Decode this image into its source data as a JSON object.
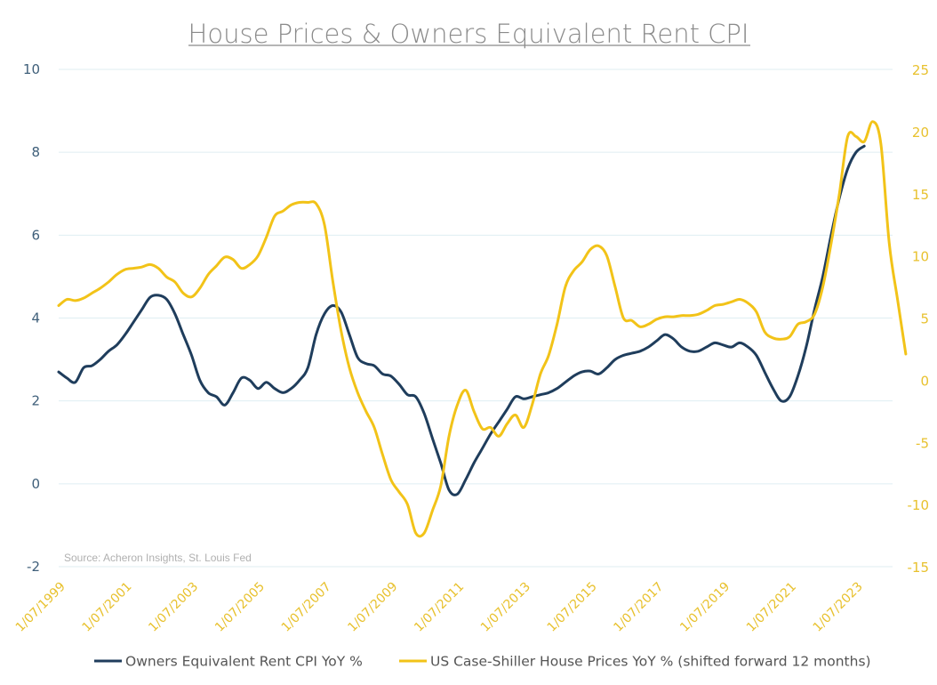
{
  "chart_data": {
    "type": "line",
    "title": "House Prices & Owners Equivalent Rent CPI",
    "source": "Source: Acheron Insights, St. Louis Fed",
    "grid": true,
    "x_tick_labels": [
      "1/07/1999",
      "1/07/2001",
      "1/07/2003",
      "1/07/2005",
      "1/07/2007",
      "1/07/2009",
      "1/07/2011",
      "1/07/2013",
      "1/07/2015",
      "1/07/2017",
      "1/07/2019",
      "1/07/2021",
      "1/07/2023"
    ],
    "x_range": [
      1999.5,
      2024.6
    ],
    "y_left": {
      "ticks": [
        10,
        8,
        6,
        4,
        2,
        0,
        -2
      ],
      "ylim": [
        -2,
        10
      ],
      "color": "#1f3d5c"
    },
    "y_right": {
      "ticks": [
        25,
        20,
        15,
        10,
        5,
        0,
        -5,
        -10,
        -15
      ],
      "ylim": [
        -15,
        25
      ],
      "color": "#f2c318"
    },
    "series": [
      {
        "name": "Owners Equivalent Rent CPI YoY %",
        "axis": "left",
        "color": "#1f3d5c",
        "points": [
          [
            1999.5,
            2.7
          ],
          [
            1999.75,
            2.55
          ],
          [
            2000.0,
            2.45
          ],
          [
            2000.25,
            2.8
          ],
          [
            2000.5,
            2.85
          ],
          [
            2000.75,
            3.0
          ],
          [
            2001.0,
            3.2
          ],
          [
            2001.25,
            3.35
          ],
          [
            2001.5,
            3.6
          ],
          [
            2001.75,
            3.9
          ],
          [
            2002.0,
            4.2
          ],
          [
            2002.25,
            4.5
          ],
          [
            2002.5,
            4.55
          ],
          [
            2002.75,
            4.45
          ],
          [
            2003.0,
            4.1
          ],
          [
            2003.25,
            3.6
          ],
          [
            2003.5,
            3.1
          ],
          [
            2003.75,
            2.5
          ],
          [
            2004.0,
            2.2
          ],
          [
            2004.25,
            2.1
          ],
          [
            2004.5,
            1.9
          ],
          [
            2004.75,
            2.2
          ],
          [
            2005.0,
            2.55
          ],
          [
            2005.25,
            2.5
          ],
          [
            2005.5,
            2.3
          ],
          [
            2005.75,
            2.45
          ],
          [
            2006.0,
            2.3
          ],
          [
            2006.25,
            2.2
          ],
          [
            2006.5,
            2.3
          ],
          [
            2006.75,
            2.5
          ],
          [
            2007.0,
            2.8
          ],
          [
            2007.25,
            3.6
          ],
          [
            2007.5,
            4.1
          ],
          [
            2007.75,
            4.3
          ],
          [
            2008.0,
            4.15
          ],
          [
            2008.25,
            3.6
          ],
          [
            2008.5,
            3.05
          ],
          [
            2008.75,
            2.9
          ],
          [
            2009.0,
            2.85
          ],
          [
            2009.25,
            2.65
          ],
          [
            2009.5,
            2.6
          ],
          [
            2009.75,
            2.4
          ],
          [
            2010.0,
            2.15
          ],
          [
            2010.25,
            2.1
          ],
          [
            2010.5,
            1.7
          ],
          [
            2010.75,
            1.1
          ],
          [
            2011.0,
            0.5
          ],
          [
            2011.25,
            -0.15
          ],
          [
            2011.5,
            -0.25
          ],
          [
            2011.75,
            0.1
          ],
          [
            2012.0,
            0.5
          ],
          [
            2012.25,
            0.85
          ],
          [
            2012.5,
            1.2
          ],
          [
            2012.75,
            1.5
          ],
          [
            2013.0,
            1.8
          ],
          [
            2013.25,
            2.1
          ],
          [
            2013.5,
            2.05
          ],
          [
            2013.75,
            2.1
          ],
          [
            2014.0,
            2.15
          ],
          [
            2014.25,
            2.2
          ],
          [
            2014.5,
            2.3
          ],
          [
            2014.75,
            2.45
          ],
          [
            2015.0,
            2.6
          ],
          [
            2015.25,
            2.7
          ],
          [
            2015.5,
            2.72
          ],
          [
            2015.75,
            2.65
          ],
          [
            2016.0,
            2.8
          ],
          [
            2016.25,
            3.0
          ],
          [
            2016.5,
            3.1
          ],
          [
            2016.75,
            3.15
          ],
          [
            2017.0,
            3.2
          ],
          [
            2017.25,
            3.3
          ],
          [
            2017.5,
            3.45
          ],
          [
            2017.75,
            3.6
          ],
          [
            2018.0,
            3.5
          ],
          [
            2018.25,
            3.3
          ],
          [
            2018.5,
            3.2
          ],
          [
            2018.75,
            3.2
          ],
          [
            2019.0,
            3.3
          ],
          [
            2019.25,
            3.4
          ],
          [
            2019.5,
            3.35
          ],
          [
            2019.75,
            3.3
          ],
          [
            2020.0,
            3.4
          ],
          [
            2020.25,
            3.3
          ],
          [
            2020.5,
            3.1
          ],
          [
            2020.75,
            2.7
          ],
          [
            2021.0,
            2.3
          ],
          [
            2021.25,
            2.0
          ],
          [
            2021.5,
            2.1
          ],
          [
            2021.75,
            2.6
          ],
          [
            2022.0,
            3.3
          ],
          [
            2022.25,
            4.2
          ],
          [
            2022.5,
            5.0
          ],
          [
            2022.75,
            6.0
          ],
          [
            2023.0,
            6.9
          ],
          [
            2023.25,
            7.6
          ],
          [
            2023.5,
            8.0
          ],
          [
            2023.75,
            8.15
          ]
        ]
      },
      {
        "name": "US Case-Shiller House Prices YoY % (shifted forward 12 months)",
        "axis": "right",
        "color": "#f2c318",
        "points": [
          [
            1999.5,
            6.0
          ],
          [
            1999.75,
            6.5
          ],
          [
            2000.0,
            6.4
          ],
          [
            2000.25,
            6.6
          ],
          [
            2000.5,
            7.0
          ],
          [
            2000.75,
            7.4
          ],
          [
            2001.0,
            7.9
          ],
          [
            2001.25,
            8.5
          ],
          [
            2001.5,
            8.9
          ],
          [
            2001.75,
            9.0
          ],
          [
            2002.0,
            9.1
          ],
          [
            2002.25,
            9.3
          ],
          [
            2002.5,
            9.0
          ],
          [
            2002.75,
            8.3
          ],
          [
            2003.0,
            7.9
          ],
          [
            2003.25,
            7.0
          ],
          [
            2003.5,
            6.7
          ],
          [
            2003.75,
            7.4
          ],
          [
            2004.0,
            8.5
          ],
          [
            2004.25,
            9.2
          ],
          [
            2004.5,
            9.9
          ],
          [
            2004.75,
            9.7
          ],
          [
            2005.0,
            9.0
          ],
          [
            2005.25,
            9.3
          ],
          [
            2005.5,
            10.0
          ],
          [
            2005.75,
            11.5
          ],
          [
            2006.0,
            13.2
          ],
          [
            2006.25,
            13.6
          ],
          [
            2006.5,
            14.1
          ],
          [
            2006.75,
            14.3
          ],
          [
            2007.0,
            14.3
          ],
          [
            2007.25,
            14.2
          ],
          [
            2007.5,
            12.5
          ],
          [
            2007.75,
            8.0
          ],
          [
            2008.0,
            4.0
          ],
          [
            2008.25,
            1.0
          ],
          [
            2008.5,
            -1.0
          ],
          [
            2008.75,
            -2.5
          ],
          [
            2009.0,
            -3.8
          ],
          [
            2009.25,
            -6.0
          ],
          [
            2009.5,
            -8.0
          ],
          [
            2009.75,
            -9.0
          ],
          [
            2010.0,
            -10.0
          ],
          [
            2010.25,
            -12.3
          ],
          [
            2010.5,
            -12.3
          ],
          [
            2010.75,
            -10.5
          ],
          [
            2011.0,
            -8.5
          ],
          [
            2011.25,
            -4.5
          ],
          [
            2011.5,
            -2.0
          ],
          [
            2011.75,
            -0.8
          ],
          [
            2012.0,
            -2.5
          ],
          [
            2012.25,
            -3.9
          ],
          [
            2012.5,
            -3.8
          ],
          [
            2012.75,
            -4.5
          ],
          [
            2013.0,
            -3.5
          ],
          [
            2013.25,
            -2.8
          ],
          [
            2013.5,
            -3.8
          ],
          [
            2013.75,
            -2.0
          ],
          [
            2014.0,
            0.5
          ],
          [
            2014.25,
            2.0
          ],
          [
            2014.5,
            4.5
          ],
          [
            2014.75,
            7.5
          ],
          [
            2015.0,
            8.8
          ],
          [
            2015.25,
            9.5
          ],
          [
            2015.5,
            10.5
          ],
          [
            2015.75,
            10.8
          ],
          [
            2016.0,
            10.0
          ],
          [
            2016.25,
            7.5
          ],
          [
            2016.5,
            5.0
          ],
          [
            2016.75,
            4.8
          ],
          [
            2017.0,
            4.3
          ],
          [
            2017.25,
            4.5
          ],
          [
            2017.5,
            4.9
          ],
          [
            2017.75,
            5.1
          ],
          [
            2018.0,
            5.1
          ],
          [
            2018.25,
            5.2
          ],
          [
            2018.5,
            5.2
          ],
          [
            2018.75,
            5.3
          ],
          [
            2019.0,
            5.6
          ],
          [
            2019.25,
            6.0
          ],
          [
            2019.5,
            6.1
          ],
          [
            2019.75,
            6.3
          ],
          [
            2020.0,
            6.5
          ],
          [
            2020.25,
            6.2
          ],
          [
            2020.5,
            5.5
          ],
          [
            2020.75,
            3.9
          ],
          [
            2021.0,
            3.4
          ],
          [
            2021.25,
            3.3
          ],
          [
            2021.5,
            3.5
          ],
          [
            2021.75,
            4.5
          ],
          [
            2022.0,
            4.7
          ],
          [
            2022.25,
            5.3
          ],
          [
            2022.5,
            7.5
          ],
          [
            2022.75,
            11.0
          ],
          [
            2023.0,
            15.0
          ],
          [
            2023.25,
            19.6
          ],
          [
            2023.5,
            19.6
          ],
          [
            2023.75,
            19.2
          ],
          [
            2024.0,
            20.8
          ],
          [
            2024.25,
            19.0
          ],
          [
            2024.5,
            11.0
          ],
          [
            2024.75,
            6.5
          ],
          [
            2025.0,
            2.1
          ]
        ]
      }
    ],
    "legend_position": "bottom-center"
  }
}
